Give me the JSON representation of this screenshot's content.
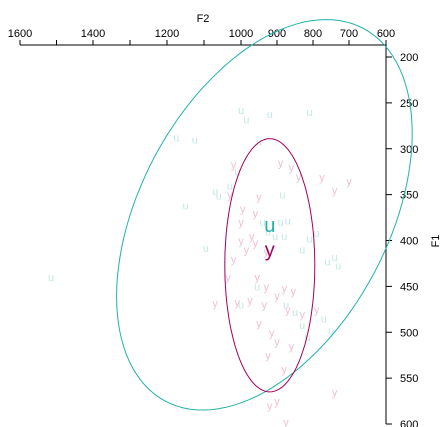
{
  "chart_data": {
    "type": "scatter",
    "title": "",
    "xlabel": "F2",
    "ylabel": "F1",
    "x_reversed": true,
    "y_reversed": true,
    "xlim": [
      1600,
      600
    ],
    "ylim": [
      200,
      600
    ],
    "x_ticks": [
      1600,
      1400,
      1200,
      1000,
      900,
      800,
      700,
      600
    ],
    "y_ticks": [
      200,
      250,
      300,
      350,
      400,
      450,
      500,
      550,
      600
    ],
    "x_axis_position": "top",
    "y_axis_position": "right",
    "grid": false,
    "legend": "none",
    "series": [
      {
        "name": "u",
        "color": "#20b2aa",
        "point_color": "#c2e8e4",
        "centroid": {
          "label": "u",
          "x": 920,
          "y": 383
        },
        "ellipse": {
          "cx": 935,
          "cy": 372,
          "rx": 345,
          "ry": 230,
          "rotation": 28
        },
        "points": [
          [
            1000,
            258
          ],
          [
            985,
            268
          ],
          [
            920,
            262
          ],
          [
            810,
            260
          ],
          [
            1175,
            288
          ],
          [
            1125,
            290
          ],
          [
            950,
            292
          ],
          [
            1010,
            325
          ],
          [
            1030,
            340
          ],
          [
            1150,
            362
          ],
          [
            1070,
            346
          ],
          [
            1060,
            351
          ],
          [
            885,
            350
          ],
          [
            940,
            380
          ],
          [
            925,
            390
          ],
          [
            905,
            395
          ],
          [
            890,
            380
          ],
          [
            870,
            378
          ],
          [
            880,
            395
          ],
          [
            830,
            410
          ],
          [
            810,
            398
          ],
          [
            790,
            392
          ],
          [
            1095,
            408
          ],
          [
            760,
            423
          ],
          [
            740,
            418
          ],
          [
            730,
            427
          ],
          [
            1515,
            440
          ],
          [
            955,
            450
          ],
          [
            1000,
            470
          ],
          [
            875,
            470
          ],
          [
            850,
            478
          ],
          [
            770,
            485
          ],
          [
            750,
            498
          ],
          [
            830,
            492
          ],
          [
            815,
            505
          ]
        ]
      },
      {
        "name": "y",
        "color": "#a2005a",
        "point_color": "#f2bfd6",
        "centroid": {
          "label": "y",
          "x": 920,
          "y": 410
        },
        "ellipse": {
          "cx": 920,
          "cy": 427,
          "rx": 125,
          "ry": 138,
          "rotation": 0
        },
        "points": [
          [
            1020,
            317
          ],
          [
            890,
            315
          ],
          [
            860,
            320
          ],
          [
            840,
            330
          ],
          [
            775,
            331
          ],
          [
            700,
            335
          ],
          [
            740,
            345
          ],
          [
            1030,
            350
          ],
          [
            950,
            352
          ],
          [
            995,
            365
          ],
          [
            960,
            370
          ],
          [
            1000,
            380
          ],
          [
            970,
            395
          ],
          [
            1000,
            400
          ],
          [
            960,
            402
          ],
          [
            930,
            412
          ],
          [
            1020,
            420
          ],
          [
            985,
            410
          ],
          [
            1035,
            440
          ],
          [
            955,
            440
          ],
          [
            930,
            450
          ],
          [
            880,
            452
          ],
          [
            1010,
            467
          ],
          [
            1070,
            468
          ],
          [
            975,
            465
          ],
          [
            900,
            460
          ],
          [
            855,
            455
          ],
          [
            870,
            475
          ],
          [
            935,
            470
          ],
          [
            790,
            475
          ],
          [
            900,
            510
          ],
          [
            860,
            515
          ],
          [
            925,
            525
          ],
          [
            880,
            540
          ],
          [
            900,
            575
          ],
          [
            920,
            580
          ],
          [
            875,
            598
          ],
          [
            740,
            565
          ],
          [
            830,
            480
          ],
          [
            950,
            490
          ],
          [
            915,
            500
          ]
        ]
      }
    ]
  }
}
